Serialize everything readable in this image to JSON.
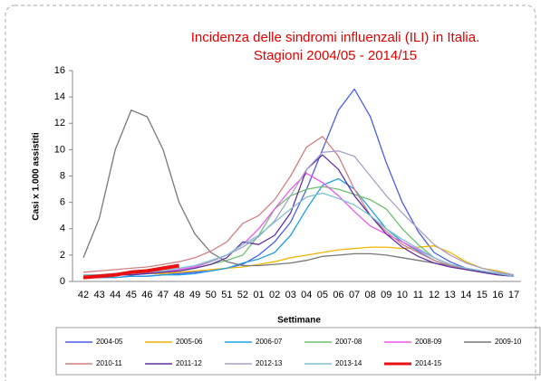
{
  "chart_data": {
    "type": "line",
    "title": [
      "Incidenza delle sindromi influenzali (ILI) in Italia.",
      "Stagioni 2004/05 - 2014/15"
    ],
    "x_label": "Settimane",
    "y_label": "Casi x 1.000 assistiti",
    "categories": [
      "42",
      "43",
      "44",
      "45",
      "46",
      "47",
      "48",
      "49",
      "50",
      "51",
      "52",
      "01",
      "02",
      "03",
      "04",
      "05",
      "06",
      "07",
      "08",
      "09",
      "10",
      "11",
      "12",
      "13",
      "14",
      "15",
      "16",
      "17"
    ],
    "ylim": [
      0,
      16
    ],
    "yticks": [
      0,
      2,
      4,
      6,
      8,
      10,
      12,
      14,
      16
    ],
    "grid": false,
    "legend": "bottom",
    "series": [
      {
        "name": "2004-05",
        "color": "#4a5ee8",
        "values": [
          0.3,
          0.3,
          0.3,
          0.4,
          0.4,
          0.5,
          0.6,
          0.7,
          0.8,
          1.0,
          1.3,
          2.0,
          3.0,
          4.5,
          7.0,
          10.0,
          13.0,
          14.6,
          12.5,
          9.0,
          6.0,
          3.8,
          2.2,
          1.5,
          1.0,
          0.8,
          0.6,
          0.4
        ]
      },
      {
        "name": "2005-06",
        "color": "#f0b400",
        "values": [
          0.4,
          0.4,
          0.5,
          0.5,
          0.6,
          0.6,
          0.7,
          0.8,
          0.9,
          1.0,
          1.1,
          1.3,
          1.5,
          1.8,
          2.0,
          2.2,
          2.4,
          2.5,
          2.6,
          2.6,
          2.5,
          2.6,
          2.7,
          2.2,
          1.5,
          1.0,
          0.8,
          0.5
        ]
      },
      {
        "name": "2006-07",
        "color": "#1ea0e8",
        "values": [
          0.3,
          0.3,
          0.3,
          0.4,
          0.4,
          0.5,
          0.5,
          0.6,
          0.8,
          1.0,
          1.4,
          1.7,
          2.2,
          3.5,
          5.5,
          7.3,
          7.8,
          7.0,
          5.5,
          4.0,
          3.0,
          2.3,
          1.6,
          1.2,
          0.9,
          0.7,
          0.5,
          0.4
        ]
      },
      {
        "name": "2007-08",
        "color": "#6cc070",
        "values": [
          0.4,
          0.4,
          0.5,
          0.5,
          0.6,
          0.7,
          0.8,
          1.0,
          1.3,
          1.6,
          2.0,
          3.5,
          5.5,
          6.5,
          7.0,
          7.2,
          7.0,
          6.6,
          6.2,
          5.5,
          4.0,
          2.8,
          1.8,
          1.3,
          1.0,
          0.8,
          0.6,
          0.4
        ]
      },
      {
        "name": "2008-09",
        "color": "#ee55ee",
        "values": [
          0.4,
          0.4,
          0.5,
          0.5,
          0.6,
          0.7,
          0.9,
          1.1,
          1.5,
          2.0,
          2.8,
          4.0,
          5.5,
          7.0,
          8.2,
          7.5,
          6.5,
          5.3,
          4.2,
          3.6,
          3.0,
          2.4,
          1.8,
          1.3,
          1.0,
          0.8,
          0.6,
          0.4
        ]
      },
      {
        "name": "2009-10",
        "color": "#777777",
        "values": [
          1.8,
          4.8,
          10.0,
          13.0,
          12.5,
          10.0,
          6.0,
          3.6,
          2.2,
          1.5,
          1.2,
          1.2,
          1.3,
          1.4,
          1.6,
          1.9,
          2.0,
          2.1,
          2.1,
          2.0,
          1.8,
          1.6,
          1.4,
          1.2,
          1.0,
          0.8,
          0.6,
          0.4
        ]
      },
      {
        "name": "2010-11",
        "color": "#d08080",
        "values": [
          0.7,
          0.8,
          0.9,
          1.0,
          1.1,
          1.3,
          1.5,
          1.8,
          2.3,
          3.0,
          4.4,
          5.0,
          6.2,
          8.0,
          10.2,
          11.0,
          9.5,
          7.0,
          5.0,
          3.8,
          2.8,
          2.2,
          1.6,
          1.2,
          0.9,
          0.7,
          0.5,
          0.4
        ]
      },
      {
        "name": "2011-12",
        "color": "#6030a0",
        "values": [
          0.4,
          0.4,
          0.5,
          0.5,
          0.6,
          0.7,
          0.8,
          1.0,
          1.3,
          1.8,
          3.0,
          2.8,
          3.5,
          5.2,
          8.5,
          9.6,
          8.5,
          6.5,
          5.0,
          3.6,
          2.6,
          1.9,
          1.4,
          1.1,
          0.9,
          0.7,
          0.5,
          0.4
        ]
      },
      {
        "name": "2012-13",
        "color": "#a8a0c8",
        "values": [
          0.5,
          0.5,
          0.6,
          0.6,
          0.7,
          0.8,
          1.0,
          1.2,
          1.5,
          2.0,
          2.6,
          3.4,
          4.6,
          6.5,
          8.5,
          9.8,
          9.9,
          9.5,
          8.0,
          6.5,
          5.2,
          4.0,
          2.8,
          2.0,
          1.4,
          1.0,
          0.7,
          0.5
        ]
      },
      {
        "name": "2013-14",
        "color": "#80c0d0",
        "values": [
          0.5,
          0.5,
          0.6,
          0.6,
          0.7,
          0.8,
          1.0,
          1.2,
          1.6,
          2.0,
          2.8,
          3.5,
          4.5,
          5.5,
          6.4,
          6.7,
          6.3,
          5.8,
          5.0,
          4.0,
          3.2,
          2.5,
          1.8,
          1.3,
          1.0,
          0.8,
          0.6,
          0.4
        ]
      },
      {
        "name": "2014-15",
        "color": "#e81010",
        "values": [
          0.3,
          0.4,
          0.5,
          0.7,
          0.8,
          1.0,
          1.2,
          null,
          null,
          null,
          null,
          null,
          null,
          null,
          null,
          null,
          null,
          null,
          null,
          null,
          null,
          null,
          null,
          null,
          null,
          null,
          null,
          null
        ]
      }
    ]
  }
}
